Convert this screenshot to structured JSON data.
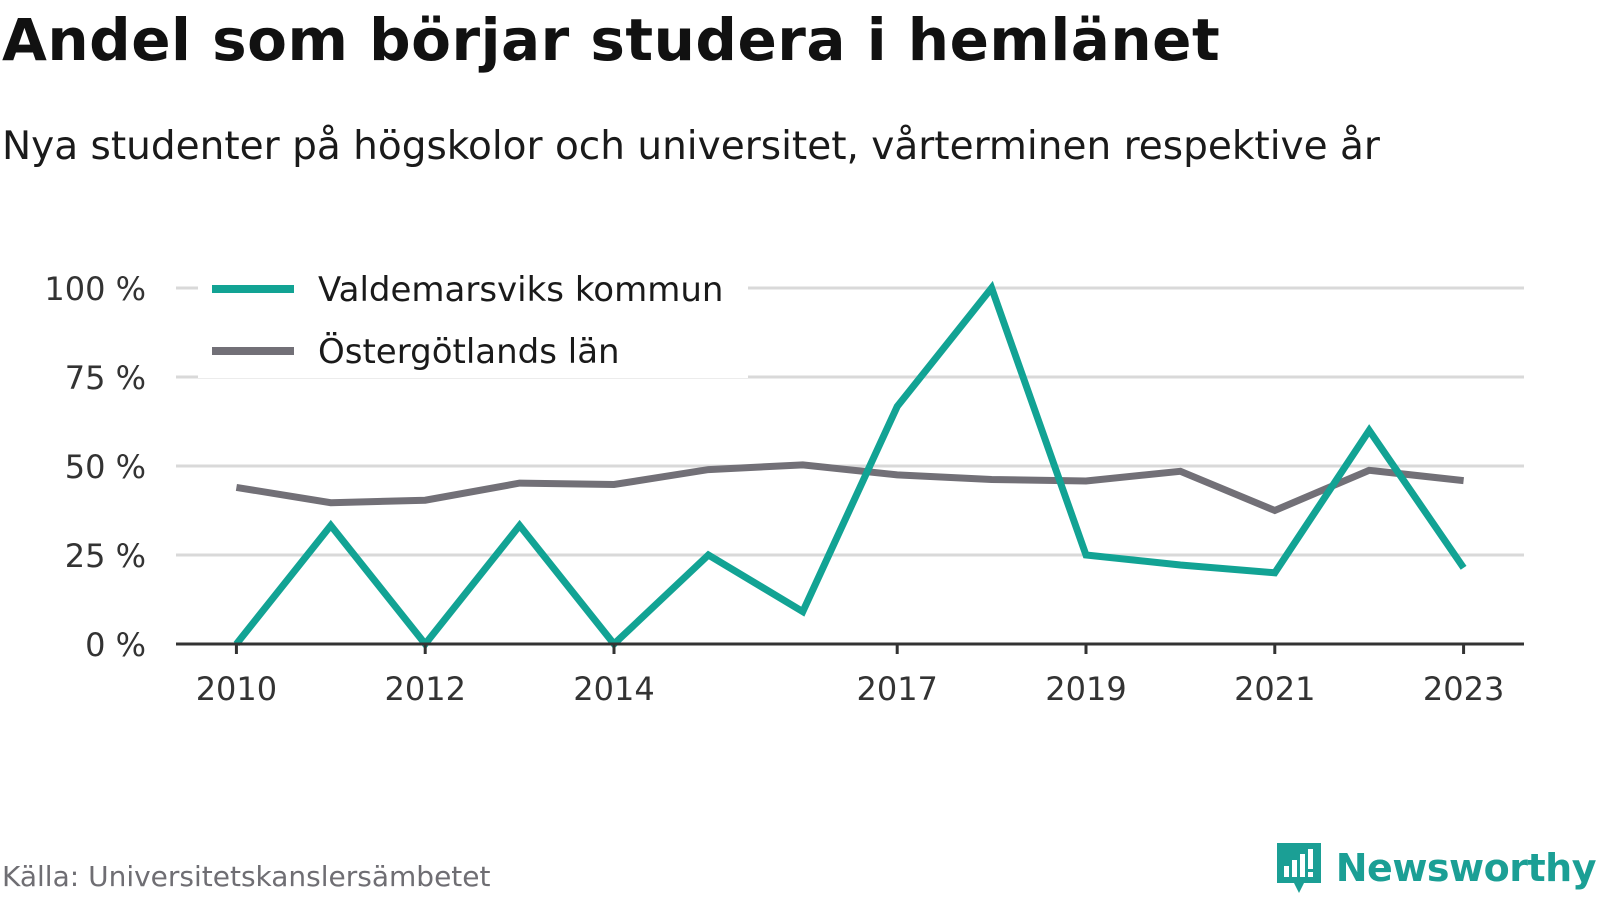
{
  "title": "Andel som börjar studera i hemlänet",
  "subtitle": "Nya studenter på högskolor och universitet, vårterminen respektive år",
  "source": "Källa: Universitetskanslersämbetet",
  "brand": {
    "name": "Newsworthy",
    "icon": "newsworthy-logo-icon",
    "color": "#1b9f95"
  },
  "colors": {
    "grid": "#d9d9d9",
    "axis": "#333333",
    "tick_text": "#333333"
  },
  "chart_data": {
    "type": "line",
    "title": "Andel som börjar studera i hemlänet",
    "subtitle": "Nya studenter på högskolor och universitet, vårterminen respektive år",
    "x": [
      2010,
      2011,
      2012,
      2013,
      2014,
      2015,
      2016,
      2017,
      2018,
      2019,
      2020,
      2021,
      2022,
      2023
    ],
    "x_ticks": [
      2010,
      2012,
      2014,
      2017,
      2019,
      2021,
      2023
    ],
    "x_tick_labels": [
      "2010",
      "2012",
      "2014",
      "2017",
      "2019",
      "2021",
      "2023"
    ],
    "ylim": [
      0,
      100
    ],
    "y_ticks": [
      0,
      25,
      50,
      75,
      100
    ],
    "y_tick_labels": [
      "0 %",
      "25 %",
      "50 %",
      "75 %",
      "100 %"
    ],
    "grid": true,
    "legend_position": "top-left",
    "series": [
      {
        "name": "Valdemarsviks kommun",
        "color": "#12a394",
        "values": [
          0,
          33.3,
          0,
          33.3,
          0,
          25,
          9.1,
          66.7,
          100,
          25,
          22.2,
          20,
          60,
          21.4
        ]
      },
      {
        "name": "Östergötlands län",
        "color": "#727077",
        "values": [
          44,
          39.7,
          40.4,
          45.2,
          44.8,
          49,
          50.3,
          47.5,
          46.2,
          45.8,
          48.5,
          37.5,
          48.8,
          45.9
        ]
      }
    ]
  }
}
